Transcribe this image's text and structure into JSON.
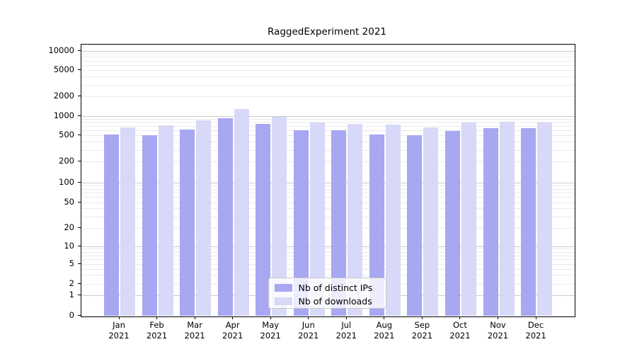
{
  "chart_data": {
    "type": "bar",
    "title": "RaggedExperiment 2021",
    "scale": "symlog",
    "grid": "horizontal major+minor, legend lower center",
    "ylim": [
      0,
      14000
    ],
    "y_ticks": [
      0,
      1,
      2,
      5,
      10,
      20,
      50,
      100,
      200,
      500,
      1000,
      2000,
      5000,
      10000
    ],
    "categories": [
      "Jan",
      "Feb",
      "Mar",
      "Apr",
      "May",
      "Jun",
      "Jul",
      "Aug",
      "Sep",
      "Oct",
      "Nov",
      "Dec"
    ],
    "year_label": "2021",
    "series": [
      {
        "key": "distinct-ips",
        "name": "Nb of distinct IPs",
        "color": "#a7a7f2",
        "values": [
          520,
          505,
          620,
          930,
          760,
          610,
          600,
          515,
          510,
          590,
          650,
          645
        ]
      },
      {
        "key": "downloads",
        "name": "Nb of downloads",
        "color": "#d8d8f8",
        "values": [
          670,
          720,
          860,
          1300,
          980,
          800,
          760,
          740,
          665,
          800,
          810,
          790
        ]
      }
    ],
    "legend_position": "lower center"
  },
  "colors": {
    "grid_major": "#cccccc",
    "grid_minor": "#ebebeb",
    "spine": "#000000",
    "legend_border": "#c8c8c8",
    "background": "#ffffff"
  }
}
